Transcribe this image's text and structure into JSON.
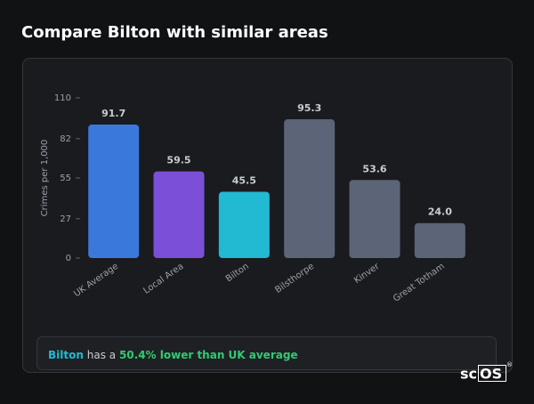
{
  "chart_data": {
    "type": "bar",
    "title": "Compare Bilton with similar areas",
    "y_label": "Crimes per 1,000",
    "categories": [
      "UK Average",
      "Local Area",
      "Bilton",
      "Bilsthorpe",
      "Kinver",
      "Great Totham"
    ],
    "values": [
      91.7,
      59.5,
      45.5,
      95.3,
      53.6,
      24.0
    ],
    "value_labels": [
      "91.7",
      "59.5",
      "45.5",
      "95.3",
      "53.6",
      "24.0"
    ],
    "colors": [
      "#3b78dc",
      "#7c4fd8",
      "#22b9d2",
      "#5b6577",
      "#5b6577",
      "#5b6577"
    ],
    "ylim": [
      0,
      110
    ],
    "yticks": [
      0,
      27,
      55,
      82,
      110
    ],
    "grid": false
  },
  "callout": {
    "area": "Bilton",
    "text": "has a",
    "highlight": "50.4% lower than UK average"
  },
  "logo": {
    "prefix": "sc",
    "boxed": "OS",
    "mark": "®"
  }
}
